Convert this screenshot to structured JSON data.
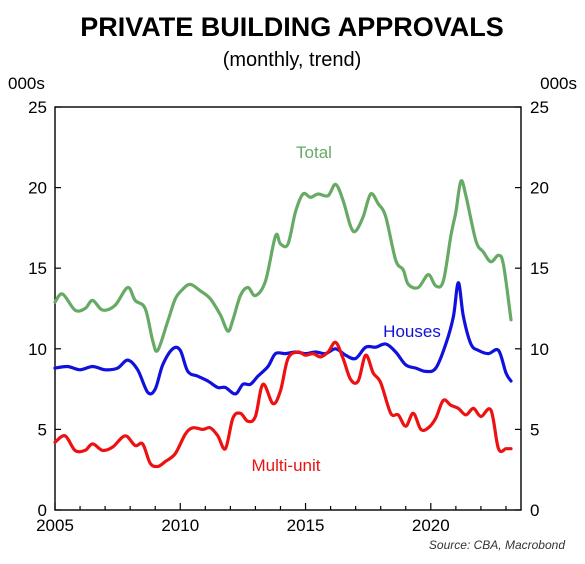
{
  "colors": {
    "total": "#66aa66",
    "houses": "#1111dd",
    "multi_unit": "#ee1111"
  },
  "chart_data": {
    "type": "line",
    "title": "PRIVATE BUILDING APPROVALS",
    "subtitle": "(monthly, trend)",
    "ylabel_left": "000s",
    "ylabel_right": "000s",
    "source": "Source: CBA, Macrobond",
    "xlim": [
      2005,
      2023.6
    ],
    "ylim": [
      0,
      25
    ],
    "x_ticks": [
      "2005",
      "2010",
      "2015",
      "2020"
    ],
    "y_ticks": [
      "0",
      "5",
      "10",
      "15",
      "20",
      "25"
    ],
    "grid": false,
    "series": [
      {
        "name": "Total",
        "color": "#66aa66",
        "x": [
          2005,
          2005.3,
          2005.8,
          2006.2,
          2006.5,
          2006.9,
          2007.4,
          2007.9,
          2008.2,
          2008.6,
          2008.9,
          2009.1,
          2009.5,
          2009.8,
          2010.1,
          2010.4,
          2010.8,
          2011.2,
          2011.6,
          2011.9,
          2012.1,
          2012.4,
          2012.7,
          2013.0,
          2013.4,
          2013.8,
          2014.0,
          2014.3,
          2014.6,
          2014.9,
          2015.2,
          2015.5,
          2015.9,
          2016.2,
          2016.5,
          2016.8,
          2017.0,
          2017.3,
          2017.6,
          2017.9,
          2018.2,
          2018.6,
          2018.9,
          2019.1,
          2019.5,
          2019.9,
          2020.2,
          2020.5,
          2020.8,
          2021.0,
          2021.2,
          2021.4,
          2021.8,
          2022.1,
          2022.4,
          2022.7,
          2022.9,
          2023.2
        ],
        "y": [
          12.9,
          13.4,
          12.4,
          12.5,
          13.0,
          12.4,
          12.7,
          13.8,
          13.0,
          12.5,
          10.5,
          9.9,
          11.7,
          13.1,
          13.7,
          14.0,
          13.6,
          13.1,
          12.1,
          11.1,
          11.8,
          13.3,
          13.8,
          13.3,
          14.2,
          17.0,
          16.5,
          16.5,
          18.5,
          19.6,
          19.4,
          19.6,
          19.5,
          20.2,
          19.2,
          17.6,
          17.3,
          18.2,
          19.6,
          19.0,
          18.2,
          15.5,
          14.9,
          14.0,
          13.8,
          14.6,
          13.9,
          14.2,
          17.0,
          18.5,
          20.4,
          19.5,
          16.7,
          16.0,
          15.4,
          15.8,
          15.2,
          11.8
        ]
      },
      {
        "name": "Houses",
        "color": "#1111dd",
        "x": [
          2005,
          2005.5,
          2006.0,
          2006.5,
          2007.0,
          2007.5,
          2007.9,
          2008.3,
          2008.7,
          2009.0,
          2009.3,
          2009.7,
          2010.0,
          2010.3,
          2010.7,
          2011.1,
          2011.5,
          2011.8,
          2012.2,
          2012.5,
          2012.8,
          2013.1,
          2013.5,
          2013.8,
          2014.2,
          2014.6,
          2015.0,
          2015.4,
          2015.8,
          2016.2,
          2016.6,
          2017.0,
          2017.4,
          2017.8,
          2018.2,
          2018.6,
          2019.0,
          2019.4,
          2019.8,
          2020.2,
          2020.6,
          2020.9,
          2021.1,
          2021.3,
          2021.6,
          2021.9,
          2022.3,
          2022.7,
          2023.0,
          2023.2
        ],
        "y": [
          8.8,
          8.9,
          8.7,
          8.9,
          8.7,
          8.8,
          9.3,
          8.7,
          7.3,
          7.5,
          9.0,
          10.0,
          9.9,
          8.6,
          8.3,
          8.0,
          7.6,
          7.6,
          7.2,
          7.8,
          7.8,
          8.3,
          8.9,
          9.7,
          9.7,
          9.8,
          9.7,
          9.8,
          9.7,
          10.0,
          9.6,
          9.4,
          10.1,
          10.1,
          10.3,
          9.8,
          9.0,
          8.8,
          8.6,
          8.8,
          10.3,
          12.0,
          14.1,
          12.0,
          10.3,
          9.9,
          9.7,
          9.9,
          8.5,
          8.0
        ]
      },
      {
        "name": "Multi-unit",
        "color": "#ee1111",
        "x": [
          2005,
          2005.4,
          2005.8,
          2006.2,
          2006.5,
          2006.9,
          2007.3,
          2007.8,
          2008.2,
          2008.5,
          2008.8,
          2009.1,
          2009.4,
          2009.8,
          2010.2,
          2010.5,
          2010.9,
          2011.2,
          2011.5,
          2011.8,
          2012.1,
          2012.4,
          2012.7,
          2013.0,
          2013.3,
          2013.7,
          2014.0,
          2014.3,
          2014.7,
          2015.0,
          2015.3,
          2015.6,
          2015.9,
          2016.2,
          2016.5,
          2016.8,
          2017.1,
          2017.4,
          2017.7,
          2018.0,
          2018.4,
          2018.7,
          2019.0,
          2019.3,
          2019.6,
          2019.9,
          2020.2,
          2020.5,
          2020.8,
          2021.1,
          2021.4,
          2021.7,
          2022.0,
          2022.4,
          2022.7,
          2023.0,
          2023.2
        ],
        "y": [
          4.2,
          4.6,
          3.7,
          3.7,
          4.1,
          3.7,
          3.9,
          4.6,
          4.0,
          4.1,
          2.9,
          2.7,
          3.0,
          3.5,
          4.7,
          5.1,
          5.0,
          5.1,
          4.6,
          3.8,
          5.7,
          6.0,
          5.5,
          5.8,
          7.8,
          6.6,
          7.4,
          9.4,
          9.8,
          9.6,
          9.7,
          9.5,
          9.8,
          10.4,
          9.4,
          8.1,
          8.0,
          9.6,
          8.5,
          7.9,
          6.0,
          5.9,
          5.2,
          6.0,
          5.0,
          5.1,
          5.7,
          6.8,
          6.5,
          6.3,
          5.9,
          6.3,
          5.8,
          6.2,
          3.8,
          3.8,
          3.8
        ]
      }
    ],
    "annotations": [
      "Total",
      "Houses",
      "Multi-unit"
    ]
  }
}
